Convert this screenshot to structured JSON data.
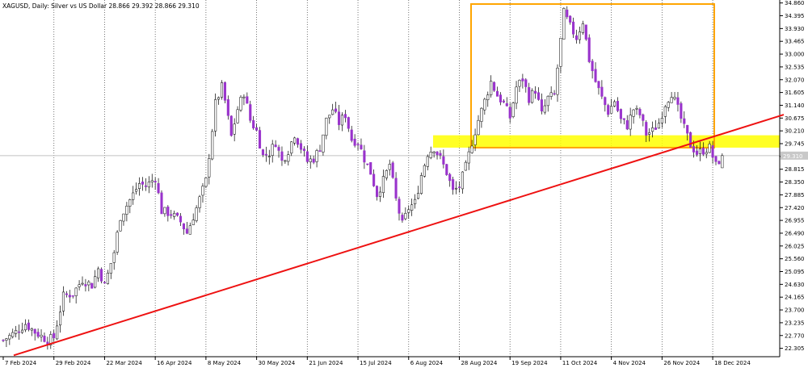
{
  "header": {
    "symbol_line": "XAGUSD, Daily:  Silver vs US Dollar  28.866 29.392 28.866 29.310"
  },
  "chart_data": {
    "type": "candlestick",
    "symbol": "XAGUSD",
    "timeframe": "Daily",
    "description": "Silver vs US Dollar",
    "last_ohlc": {
      "open": 28.866,
      "high": 29.392,
      "low": 28.866,
      "close": 29.31
    },
    "current_price": {
      "label": "29.310",
      "value": 29.31
    },
    "ylim": [
      22.0,
      34.85
    ],
    "xlim": [
      0,
      231
    ],
    "y_ticks": [
      "34.860",
      "34.395",
      "33.930",
      "33.465",
      "33.000",
      "32.535",
      "32.070",
      "31.605",
      "31.140",
      "30.675",
      "30.210",
      "29.745",
      "29.280",
      "28.815",
      "28.350",
      "27.885",
      "27.420",
      "26.955",
      "26.490",
      "26.025",
      "25.560",
      "25.095",
      "24.630",
      "24.165",
      "23.700",
      "23.235",
      "22.770",
      "22.305"
    ],
    "x_ticks": [
      {
        "label": "7 Feb 2024",
        "day": 0
      },
      {
        "label": "29 Feb 2024",
        "day": 16
      },
      {
        "label": "22 Mar 2024",
        "day": 32
      },
      {
        "label": "16 Apr 2024",
        "day": 48
      },
      {
        "label": "8 May 2024",
        "day": 64
      },
      {
        "label": "30 May 2024",
        "day": 80
      },
      {
        "label": "21 Jun 2024",
        "day": 96
      },
      {
        "label": "15 Jul 2024",
        "day": 112
      },
      {
        "label": "6 Aug 2024",
        "day": 128
      },
      {
        "label": "28 Aug 2024",
        "day": 144
      },
      {
        "label": "19 Sep 2024",
        "day": 160
      },
      {
        "label": "11 Oct 2024",
        "day": 176
      },
      {
        "label": "4 Nov 2024",
        "day": 192
      },
      {
        "label": "26 Nov 2024",
        "day": 208
      },
      {
        "label": "18 Dec 2024",
        "day": 224
      }
    ],
    "bull_color": "#ffffff",
    "bear_color": "#9933cc",
    "wick_color": "#000000",
    "anchors": [
      [
        0,
        22.6
      ],
      [
        4,
        22.9
      ],
      [
        7,
        23.2
      ],
      [
        10,
        22.9
      ],
      [
        14,
        22.6
      ],
      [
        16,
        22.7
      ],
      [
        19,
        24.2
      ],
      [
        22,
        24.3
      ],
      [
        25,
        24.8
      ],
      [
        28,
        24.6
      ],
      [
        30,
        25.2
      ],
      [
        32,
        24.6
      ],
      [
        35,
        25.8
      ],
      [
        37,
        27.1
      ],
      [
        40,
        27.7
      ],
      [
        43,
        28.3
      ],
      [
        45,
        28.2
      ],
      [
        48,
        28.5
      ],
      [
        50,
        27.3
      ],
      [
        53,
        27.2
      ],
      [
        56,
        26.9
      ],
      [
        58,
        26.5
      ],
      [
        61,
        27.4
      ],
      [
        64,
        28.4
      ],
      [
        67,
        31.2
      ],
      [
        69,
        31.8
      ],
      [
        70,
        31.3
      ],
      [
        72,
        30.0
      ],
      [
        74,
        31.0
      ],
      [
        76,
        31.6
      ],
      [
        78,
        30.6
      ],
      [
        80,
        30.2
      ],
      [
        82,
        29.3
      ],
      [
        84,
        29.4
      ],
      [
        86,
        29.8
      ],
      [
        88,
        29.1
      ],
      [
        90,
        29.5
      ],
      [
        92,
        30.1
      ],
      [
        94,
        29.6
      ],
      [
        96,
        29.1
      ],
      [
        98,
        29.2
      ],
      [
        100,
        29.6
      ],
      [
        102,
        30.6
      ],
      [
        104,
        31.0
      ],
      [
        106,
        30.5
      ],
      [
        108,
        30.8
      ],
      [
        110,
        29.9
      ],
      [
        112,
        29.8
      ],
      [
        114,
        29.2
      ],
      [
        116,
        28.7
      ],
      [
        118,
        27.9
      ],
      [
        120,
        28.4
      ],
      [
        122,
        29.0
      ],
      [
        124,
        27.7
      ],
      [
        126,
        26.8
      ],
      [
        128,
        27.4
      ],
      [
        130,
        27.6
      ],
      [
        132,
        28.6
      ],
      [
        134,
        29.4
      ],
      [
        136,
        29.6
      ],
      [
        138,
        29.2
      ],
      [
        140,
        28.7
      ],
      [
        142,
        28.0
      ],
      [
        144,
        28.2
      ],
      [
        146,
        28.9
      ],
      [
        148,
        29.8
      ],
      [
        150,
        30.6
      ],
      [
        152,
        31.3
      ],
      [
        154,
        32.0
      ],
      [
        156,
        31.5
      ],
      [
        158,
        31.2
      ],
      [
        160,
        30.7
      ],
      [
        162,
        31.8
      ],
      [
        164,
        32.1
      ],
      [
        166,
        31.4
      ],
      [
        168,
        31.7
      ],
      [
        170,
        30.8
      ],
      [
        172,
        31.4
      ],
      [
        174,
        31.5
      ],
      [
        176,
        33.5
      ],
      [
        177,
        34.5
      ],
      [
        179,
        34.0
      ],
      [
        181,
        33.6
      ],
      [
        183,
        34.2
      ],
      [
        185,
        32.8
      ],
      [
        187,
        32.0
      ],
      [
        189,
        31.4
      ],
      [
        191,
        30.9
      ],
      [
        193,
        31.3
      ],
      [
        195,
        30.6
      ],
      [
        197,
        30.4
      ],
      [
        199,
        31.0
      ],
      [
        201,
        30.8
      ],
      [
        203,
        30.1
      ],
      [
        205,
        30.2
      ],
      [
        207,
        30.5
      ],
      [
        209,
        31.2
      ],
      [
        211,
        31.6
      ],
      [
        213,
        31.0
      ],
      [
        215,
        30.3
      ],
      [
        217,
        29.7
      ],
      [
        219,
        29.4
      ],
      [
        221,
        29.5
      ],
      [
        223,
        29.6
      ],
      [
        225,
        28.95
      ],
      [
        227,
        29.31
      ]
    ]
  }
}
